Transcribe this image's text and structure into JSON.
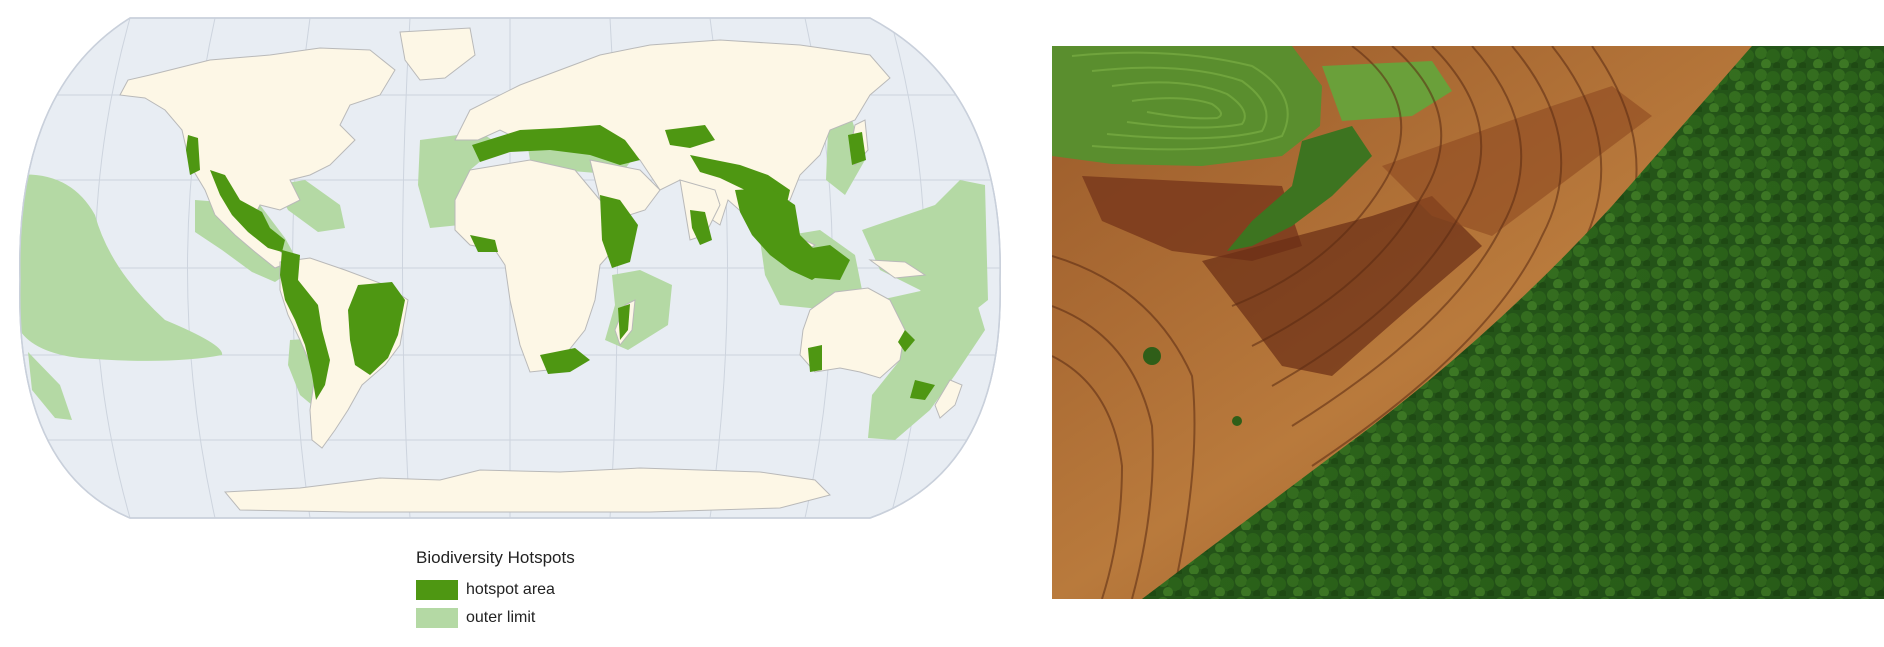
{
  "map": {
    "projection": "Robinson",
    "colors": {
      "ocean": "#e8edf3",
      "land": "#fdf7e6",
      "hotspot_area": "#4e9712",
      "outer_limit": "#b4d9a4",
      "graticule": "#c9d0db",
      "coastline": "#b9b9b9"
    }
  },
  "legend": {
    "title": "Biodiversity Hotspots",
    "items": [
      {
        "label": "hotspot area",
        "color": "#4e9712"
      },
      {
        "label": "outer limit",
        "color": "#b4d9a4"
      }
    ]
  },
  "photo": {
    "subject": "aerial view of plowed farmland bordering dense forest",
    "colors": {
      "soil_light": "#b97a3c",
      "soil_dark": "#7a3a1c",
      "field_green": "#4e8a2a",
      "forest_dark": "#1f4a12",
      "forest_mid": "#2f6a1c"
    }
  }
}
